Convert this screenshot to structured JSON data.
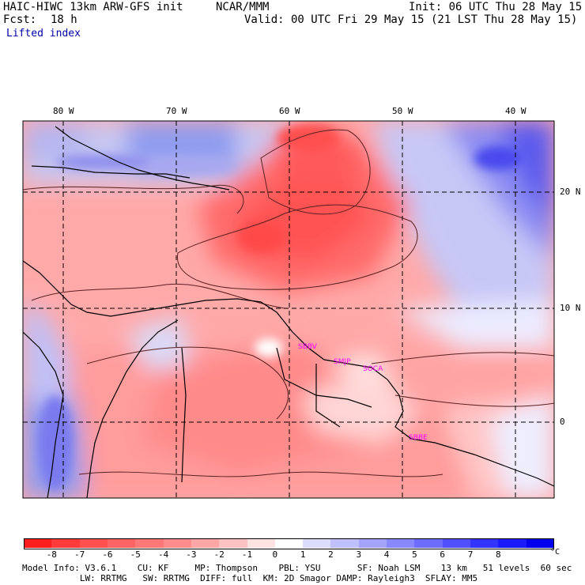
{
  "header": {
    "title_left": "HAIC-HIWC 13km ARW-GFS init",
    "org": "NCAR/MMM",
    "init": "Init: 06 UTC Thu 28 May 15",
    "fcst_label": "Fcst:",
    "fcst_value": "18 h",
    "valid": "Valid: 00 UTC Fri 29 May 15 (21 LST Thu 28 May 15)",
    "field": "Lifted index"
  },
  "map": {
    "lon_labels": [
      "80 W",
      "70 W",
      "60 W",
      "50 W",
      "40 W"
    ],
    "lat_labels": [
      "20 N",
      "10 N",
      "0"
    ],
    "stations": [
      "SBBV",
      "SMJP",
      "SOCA",
      "SBBE"
    ],
    "station_color": "#ff00ff"
  },
  "colorbar": {
    "unit": "°C",
    "ticks": [
      "-8",
      "-7",
      "-6",
      "-5",
      "-4",
      "-3",
      "-2",
      "-1",
      "0",
      "1",
      "2",
      "3",
      "4",
      "5",
      "6",
      "7",
      "8"
    ],
    "colors": [
      "#ff1e1e",
      "#ff3a3a",
      "#ff5050",
      "#ff6464",
      "#ff7878",
      "#ff8c8c",
      "#ffa6a6",
      "#ffc2c2",
      "#ffe2e2",
      "#ffffff",
      "#dcdcff",
      "#c0c0ff",
      "#a4a4ff",
      "#8888ff",
      "#6c6cff",
      "#5050ff",
      "#3434ff",
      "#1a1aff",
      "#0000ee"
    ]
  },
  "footer": {
    "line1": "Model Info: V3.6.1    CU: KF     MP: Thompson    PBL: YSU       SF: Noah LSM    13 km   51 levels  60 sec",
    "line2": "           LW: RRTMG   SW: RRTMG  DIFF: full  KM: 2D Smagor DAMP: Rayleigh3  SFLAY: MM5"
  }
}
